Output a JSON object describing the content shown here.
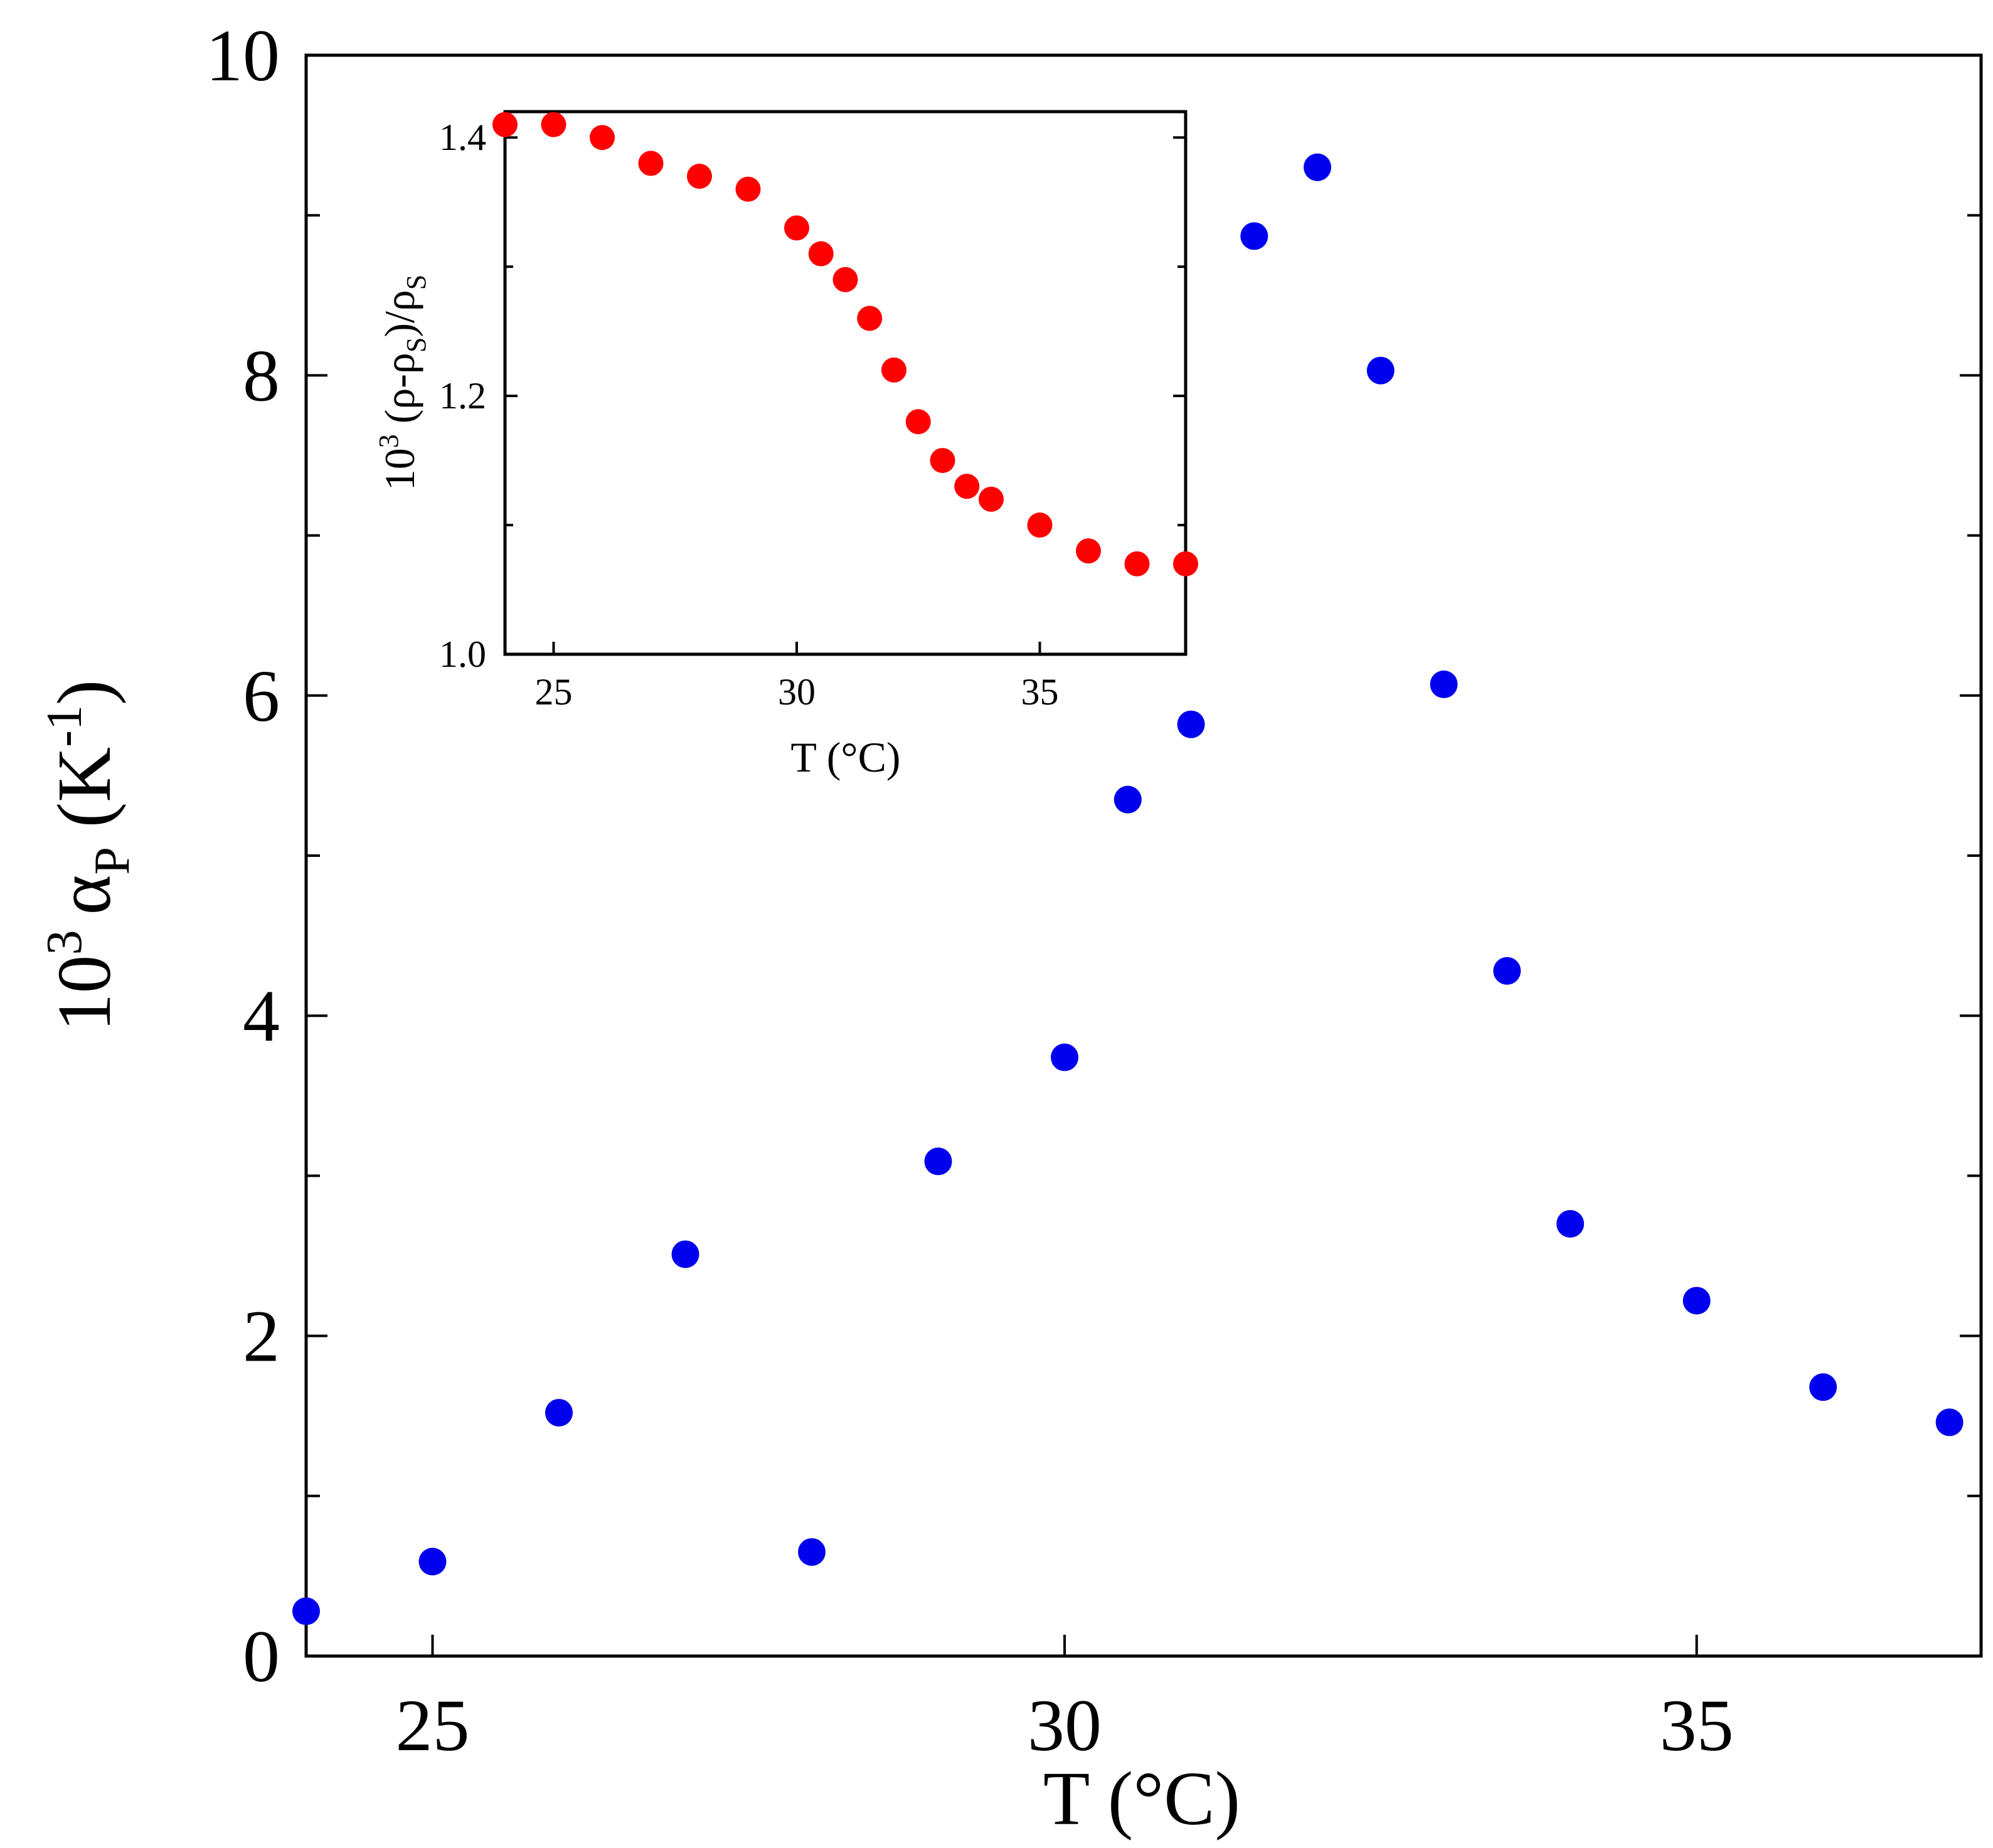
{
  "chart_data": [
    {
      "type": "scatter",
      "role": "main",
      "xlabel": "T (°C)",
      "ylabel": {
        "prefix": "10",
        "exp": "3",
        "symbol": "α",
        "sub": "P",
        "unit_open": " (K",
        "unit_exp": "-1",
        "unit_close": ")"
      },
      "xlim": [
        24,
        37.25
      ],
      "ylim": [
        0,
        10
      ],
      "xticks_major": [
        25,
        30,
        35
      ],
      "xtick_labels": [
        "25",
        "30",
        "35"
      ],
      "yticks_major": [
        0,
        2,
        4,
        6,
        8,
        10
      ],
      "ytick_labels": [
        "0",
        "2",
        "4",
        "6",
        "8",
        "10"
      ],
      "yticks_minor": [
        1,
        3,
        5,
        7,
        9
      ],
      "grid": false,
      "series": [
        {
          "name": "alpha_P",
          "color": "#0000ee",
          "points": [
            [
              24.0,
              0.28
            ],
            [
              25.0,
              0.59
            ],
            [
              26.0,
              1.52
            ],
            [
              27.0,
              2.51
            ],
            [
              28.0,
              0.65
            ],
            [
              29.0,
              3.09
            ],
            [
              30.0,
              3.74
            ],
            [
              30.5,
              5.35
            ],
            [
              31.0,
              5.82
            ],
            [
              31.5,
              8.87
            ],
            [
              32.0,
              9.3
            ],
            [
              32.5,
              8.03
            ],
            [
              33.0,
              6.07
            ],
            [
              33.5,
              4.28
            ],
            [
              34.0,
              2.7
            ],
            [
              35.0,
              2.22
            ],
            [
              36.0,
              1.68
            ],
            [
              37.0,
              1.46
            ]
          ]
        }
      ]
    },
    {
      "type": "scatter",
      "role": "inset",
      "xlabel": "T (°C)",
      "ylabel": {
        "prefix": "10",
        "exp": "3",
        "body1": " (ρ-ρ",
        "sub1": "S",
        "body2": ")/ρ",
        "sub2": "S"
      },
      "xlim": [
        24,
        38
      ],
      "ylim": [
        1.0,
        1.42
      ],
      "xticks_major": [
        25,
        30,
        35
      ],
      "xtick_labels": [
        "25",
        "30",
        "35"
      ],
      "yticks_major": [
        1.0,
        1.2,
        1.4
      ],
      "ytick_labels": [
        "1.0",
        "1.2",
        "1.4"
      ],
      "yticks_minor": [
        1.1,
        1.3
      ],
      "grid": false,
      "series": [
        {
          "name": "relative_density",
          "color": "#ff0000",
          "points": [
            [
              24.0,
              1.41
            ],
            [
              25.0,
              1.41
            ],
            [
              26.0,
              1.4
            ],
            [
              27.0,
              1.38
            ],
            [
              28.0,
              1.37
            ],
            [
              29.0,
              1.36
            ],
            [
              30.0,
              1.33
            ],
            [
              30.5,
              1.31
            ],
            [
              31.0,
              1.29
            ],
            [
              31.5,
              1.26
            ],
            [
              32.0,
              1.22
            ],
            [
              32.5,
              1.18
            ],
            [
              33.0,
              1.15
            ],
            [
              33.5,
              1.13
            ],
            [
              34.0,
              1.12
            ],
            [
              35.0,
              1.1
            ],
            [
              36.0,
              1.08
            ],
            [
              37.0,
              1.07
            ],
            [
              38.0,
              1.07
            ]
          ]
        }
      ]
    }
  ]
}
